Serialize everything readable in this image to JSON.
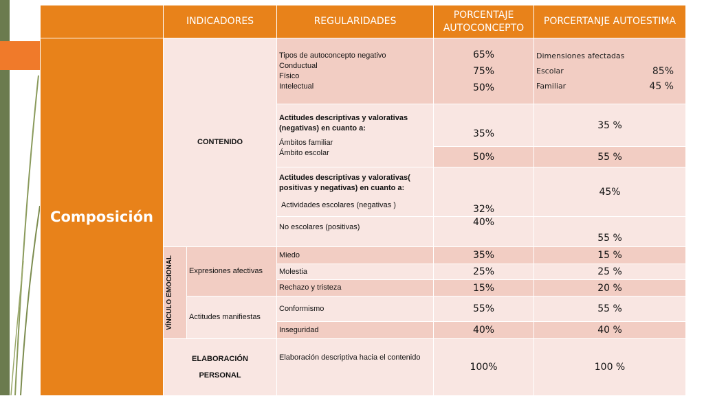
{
  "headers": {
    "indicadores": "INDICADORES",
    "regularidades": "REGULARIDADES",
    "porc_autoconcepto": "PORCENTAJE AUTOCONCEPTO",
    "porc_autoestima": "PORCERTANJE AUTOESTIMA"
  },
  "composicion": "Composición",
  "contenido": "CONTENIDO",
  "rows": {
    "r1": {
      "reg": [
        "Tipos de autoconcepto negativo",
        "Conductual",
        "Físico",
        "Intelectual"
      ],
      "autoconcepto": [
        "65%",
        "75%",
        "50%"
      ],
      "autoestima_title": "Dimensiones afectadas",
      "autoestima": [
        {
          "label": "Escolar",
          "value": "85%"
        },
        {
          "label": "Familiar",
          "value": "45 %"
        }
      ]
    },
    "r2": {
      "heading": "Actitudes descriptivas y valorativas (negativas) en cuanto a:",
      "item1": "Ámbitos familiar",
      "item2": "Ámbito  escolar",
      "auto1": "35%",
      "esti1": "35 %",
      "auto2": "50%",
      "esti2": "55 %"
    },
    "r3": {
      "heading": "Actitudes descriptivas y valorativas( positivas y negativas) en cuanto a:",
      "item1": "Actividades escolares (negativas )",
      "item2": "No escolares (positivas)",
      "auto1": "32%",
      "auto2": "40%",
      "esti1": "45%",
      "esti2": "55 %"
    }
  },
  "vinculo": "VÍNCULO EMOCIONAL",
  "expresiones": {
    "label": "Expresiones afectivas",
    "items": [
      {
        "reg": "Miedo",
        "auto": "35%",
        "esti": "15 %"
      },
      {
        "reg": "Molestia",
        "auto": "25%",
        "esti": "25 %"
      },
      {
        "reg": "Rechazo y tristeza",
        "auto": "15%",
        "esti": "20 %"
      }
    ]
  },
  "actitudes": {
    "label": "Actitudes manifiestas",
    "items": [
      {
        "reg": "Conformismo",
        "auto": "55%",
        "esti": "55 %"
      },
      {
        "reg": "Inseguridad",
        "auto": "40%",
        "esti": "40 %"
      }
    ]
  },
  "elaboracion": {
    "label_line1": "ELABORACIÓN",
    "label_line2": "PERSONAL",
    "reg": "Elaboración descriptiva hacia el contenido",
    "auto": "100%",
    "esti": "100 %"
  },
  "colors": {
    "header_orange": "#e8821a",
    "cell_dark": "#f2cdc3",
    "cell_light": "#f9e6e2",
    "side_green": "#6b7b4e",
    "accent_orange": "#f07a2a"
  }
}
